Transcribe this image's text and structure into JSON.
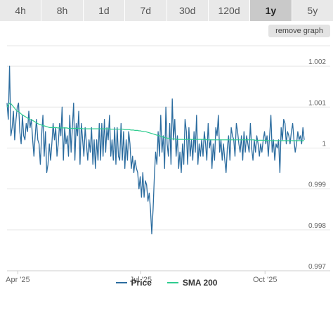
{
  "range_tabs": [
    {
      "label": "4h",
      "active": false
    },
    {
      "label": "8h",
      "active": false
    },
    {
      "label": "1d",
      "active": false
    },
    {
      "label": "7d",
      "active": false
    },
    {
      "label": "30d",
      "active": false
    },
    {
      "label": "120d",
      "active": false
    },
    {
      "label": "1y",
      "active": true
    },
    {
      "label": "5y",
      "active": false
    }
  ],
  "remove_graph_label": "remove graph",
  "colors": {
    "price_line": "#2b6c9f",
    "sma_line": "#2ecc8f",
    "grid": "#e6e6e6",
    "tick_text": "#666666",
    "active_tab": "#c9c9c9",
    "tab_bg": "#e9e9e9"
  },
  "chart_data": {
    "type": "line",
    "ylim": [
      0.997,
      1.0025
    ],
    "y_ticks": [
      0.997,
      0.998,
      0.999,
      1,
      1.001,
      1.002
    ],
    "y_tick_labels": [
      "0.997",
      "0.998",
      "0.999",
      "1",
      "1.001",
      "1.002"
    ],
    "grid": true,
    "x_ticks": [
      {
        "label": "Apr '25",
        "day": 8
      },
      {
        "label": "Jul '25",
        "day": 99
      },
      {
        "label": "Oct '25",
        "day": 191
      }
    ],
    "xlim": [
      0,
      220
    ],
    "series": [
      {
        "name": "Price",
        "values": [
          1.0011,
          1.0007,
          1.002,
          1.0003,
          1.0005,
          1.0009,
          1.0002,
          1.0007,
          1.001,
          1.0011,
          1.0004,
          1.0001,
          1.0008,
          1.0003,
          1.0002,
          1.0006,
          1.0004,
          1.0009,
          1.0005,
          1.0007,
          1.0002,
          0.9998,
          1.0003,
          1.0007,
          1.0002,
          1.0001,
          0.9996,
          1.0003,
          1.0008,
          0.9998,
          1.0004,
          0.9994,
          0.9996,
          1.0001,
          0.9997,
          1.0001,
          1.0006,
          1.0002,
          1.0005,
          0.9998,
          1.0001,
          1.0006,
          1.0003,
          1.001,
          0.9997,
          1.0005,
          1.0001,
          1.0003,
          0.9998,
          1.0008,
          0.9999,
          1.0005,
          1.0011,
          0.9997,
          1.0006,
          1.0003,
          1.0009,
          0.9996,
          1.0006,
          1.0002,
          0.9998,
          1.0005,
          1.0001,
          0.9997,
          1.0002,
          0.9999,
          1.0005,
          0.9996,
          1.0002,
          0.9995,
          1.0002,
          0.9997,
          1.0006,
          0.9997,
          1.0006,
          0.9998,
          1.0007,
          0.9999,
          1.0005,
          1.0002,
          1.0008,
          0.9998,
          1.0002,
          0.9997,
          1.0005,
          0.9996,
          1.0005,
          0.9998,
          0.9997,
          1.0006,
          0.9997,
          1.0004,
          0.9995,
          1.0002,
          0.9997,
          1.0004,
          1.0001,
          0.9995,
          0.9998,
          0.9994,
          0.9997,
          0.9995,
          0.9994,
          0.999,
          0.9993,
          0.9988,
          0.9994,
          0.9988,
          0.9992,
          0.9991,
          0.9987,
          0.9989,
          0.9985,
          0.9979,
          0.9985,
          0.9993,
          0.9999,
          0.9996,
          1.0004,
          0.9998,
          1.0008,
          0.9999,
          1.0003,
          0.9995,
          1.001,
          1.0001,
          0.9998,
          1.0006,
          0.9996,
          1.0012,
          1.0002,
          1.0007,
          0.9998,
          1.0003,
          0.9995,
          0.9999,
          0.9994,
          1.0001,
          0.9996,
          1.0007,
          1.0004,
          0.9996,
          1.0005,
          0.9998,
          1.0002,
          0.9997,
          1.0004,
          0.9999,
          1.0008,
          0.9996,
          1.0001,
          0.9998,
          1.0002,
          0.9998,
          1.0004,
          1.0001,
          0.9997,
          1.0006,
          1.0,
          1.0002,
          0.9995,
          1.0001,
          0.9997,
          1.0005,
          1.0003,
          1.0008,
          0.9999,
          1.0002,
          0.9997,
          1.0001,
          0.9997,
          0.9994,
          1.0,
          1.0003,
          0.9997,
          1.0005,
          1.0003,
          1.0002,
          0.9998,
          1.0006,
          1.0004,
          1.0001,
          0.9999,
          1.0003,
          0.9997,
          1.0004,
          0.9999,
          1.0003,
          1.0001,
          0.9999,
          1.0006,
          1.0,
          0.9997,
          1.0002,
          0.9999,
          1.0003,
          1.0001,
          0.9998,
          1.0001,
          0.9999,
          1.0002,
          1.0004,
          1.0001,
          1.0003,
          0.9998,
          1.0003,
          1.0008,
          0.9999,
          1.0002,
          0.9997,
          1.0001,
          1.0,
          1.0002,
          0.9994,
          1.0005,
          1.0002,
          1.0007,
          1.0006,
          1.0001,
          1.0004,
          1.0003,
          1.0001,
          1.0004,
          1.0006,
          1.0002,
          0.9999,
          1.0001,
          1.0004,
          1.0002,
          1.0003,
          1.0001,
          1.0005,
          1.0002
        ]
      },
      {
        "name": "SMA 200",
        "values": [
          1.001,
          1.00105,
          1.0011,
          1.00108,
          1.00104,
          1.001,
          1.00096,
          1.00092,
          1.0009,
          1.00088,
          1.00085,
          1.00082,
          1.0008,
          1.00078,
          1.00076,
          1.00074,
          1.00072,
          1.0007,
          1.00069,
          1.00068,
          1.00066,
          1.00064,
          1.00062,
          1.0006,
          1.00058,
          1.00057,
          1.00056,
          1.00055,
          1.00054,
          1.00053,
          1.00052,
          1.00051,
          1.0005,
          1.0005,
          1.0005,
          1.0005,
          1.0005,
          1.0005,
          1.00049,
          1.00049,
          1.00049,
          1.00049,
          1.00049,
          1.00049,
          1.00049,
          1.00049,
          1.00048,
          1.00048,
          1.00048,
          1.00048,
          1.00048,
          1.00048,
          1.00048,
          1.00048,
          1.00048,
          1.00048,
          1.00048,
          1.00047,
          1.00047,
          1.00047,
          1.00047,
          1.00047,
          1.00047,
          1.00047,
          1.00047,
          1.00047,
          1.00047,
          1.00047,
          1.00047,
          1.00047,
          1.00047,
          1.00047,
          1.00047,
          1.00047,
          1.00047,
          1.00047,
          1.00047,
          1.00047,
          1.00046,
          1.00046,
          1.00046,
          1.00046,
          1.00046,
          1.00046,
          1.00046,
          1.00046,
          1.00046,
          1.00046,
          1.00045,
          1.00045,
          1.00045,
          1.00045,
          1.00045,
          1.00044,
          1.00044,
          1.00044,
          1.00043,
          1.00043,
          1.00043,
          1.00042,
          1.00042,
          1.00041,
          1.00041,
          1.0004,
          1.0004,
          1.00039,
          1.00038,
          1.00037,
          1.00036,
          1.00035,
          1.00034,
          1.00033,
          1.00032,
          1.00031,
          1.0003,
          1.00029,
          1.00028,
          1.00027,
          1.00026,
          1.00025,
          1.00024,
          1.00024,
          1.00023,
          1.00023,
          1.00022,
          1.00022,
          1.00022,
          1.00021,
          1.00021,
          1.00021,
          1.00021,
          1.00021,
          1.00021,
          1.00021,
          1.00021,
          1.00021,
          1.00021,
          1.00021,
          1.00021,
          1.00021,
          1.00021,
          1.00021,
          1.00021,
          1.00021,
          1.00021,
          1.00021,
          1.00021,
          1.00021,
          1.00021,
          1.00021,
          1.0002,
          1.0002,
          1.0002,
          1.0002,
          1.0002,
          1.0002,
          1.0002,
          1.0002,
          1.0002,
          1.0002,
          1.0002,
          1.0002,
          1.0002,
          1.0002,
          1.0002,
          1.0002,
          1.0002,
          1.0002,
          1.0002,
          1.0002,
          1.0002,
          1.0002,
          1.0002,
          1.0002,
          1.0002,
          1.0002,
          1.0002,
          1.0002,
          1.0002,
          1.0002,
          1.0002,
          1.0002,
          1.0002,
          1.0002,
          1.0002,
          1.0002,
          1.00019,
          1.00019,
          1.00019,
          1.00019,
          1.00019,
          1.00019,
          1.00019,
          1.00019,
          1.00019,
          1.00019,
          1.00018,
          1.00018,
          1.00018,
          1.00018,
          1.00018,
          1.00018,
          1.00018,
          1.00018,
          1.00018,
          1.00018,
          1.00018,
          1.00018,
          1.00018,
          1.00018,
          1.00018,
          1.00018,
          1.00018,
          1.00018,
          1.00018,
          1.00018,
          1.00018,
          1.00018,
          1.00018,
          1.00018,
          1.00018,
          1.00018,
          1.00018,
          1.00018
        ]
      }
    ]
  },
  "legend": [
    {
      "label": "Price",
      "series_index": 0
    },
    {
      "label": "SMA 200",
      "series_index": 1
    }
  ]
}
